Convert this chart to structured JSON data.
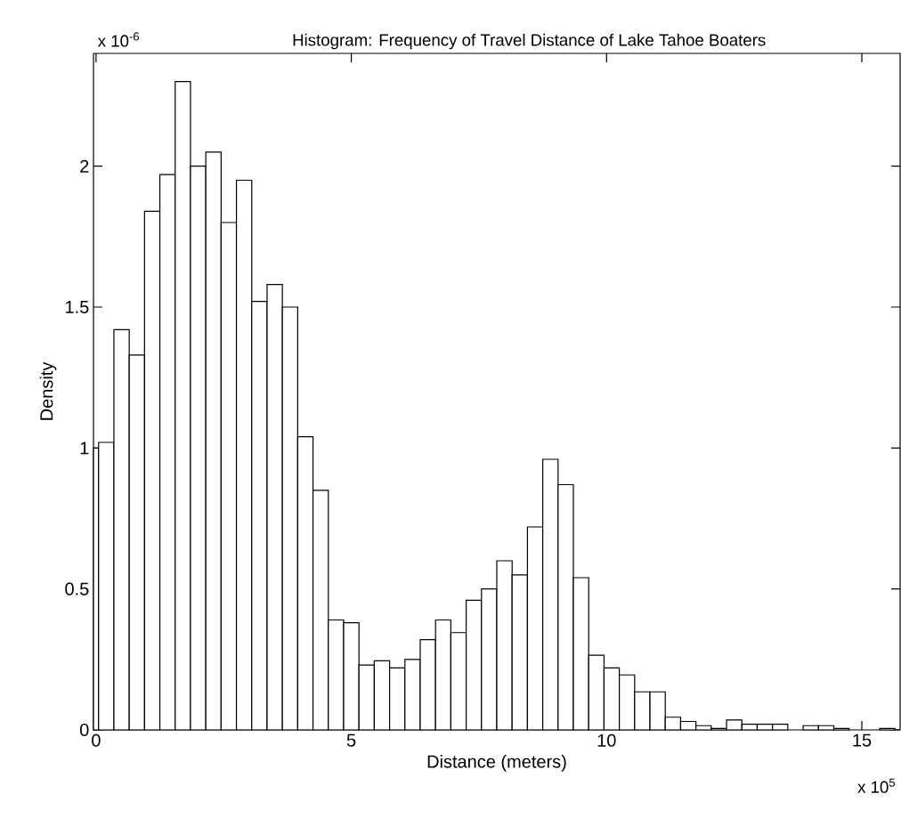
{
  "chart_data": {
    "type": "histogram",
    "title": "Histogram: Frequency of Travel Distance of Lake Tahoe Boaters",
    "xlabel": "Distance (meters)",
    "ylabel": "Density",
    "annotations": [
      "x 10$^{-6}$",
      "x 10$^{5}$"
    ],
    "bins": [
      -0.05,
      0.05,
      0.35,
      0.65,
      0.95,
      1.25,
      1.55,
      1.85,
      2.15,
      2.45,
      2.75,
      3.05,
      3.35,
      3.65,
      3.95,
      4.25,
      4.55,
      4.85,
      5.15,
      5.45,
      5.75,
      6.05,
      6.35,
      6.65,
      6.95,
      7.25,
      7.55,
      7.85,
      8.15,
      8.45,
      8.75,
      9.05,
      9.35,
      9.65,
      9.95,
      10.25,
      10.55,
      10.85,
      11.15,
      11.45,
      11.75,
      12.05,
      12.35,
      12.65,
      12.95,
      13.25,
      13.55,
      13.85,
      14.15,
      14.45,
      14.75,
      15.35,
      15.65
    ],
    "values": [
      1.0,
      1.02,
      1.42,
      1.33,
      1.84,
      1.97,
      2.3,
      2.0,
      2.05,
      1.8,
      1.95,
      1.52,
      1.58,
      1.5,
      1.04,
      0.85,
      0.39,
      0.38,
      0.23,
      0.245,
      0.22,
      0.25,
      0.32,
      0.39,
      0.345,
      0.46,
      0.5,
      0.6,
      0.55,
      0.72,
      0.96,
      0.87,
      0.54,
      0.265,
      0.22,
      0.195,
      0.135,
      0.135,
      0.045,
      0.03,
      0.015,
      0.005,
      0.035,
      0.02,
      0.02,
      0.02,
      0,
      0.015,
      0.015,
      0.005,
      0,
      0.005
    ],
    "color": "#ffffff",
    "xlim": [
      -0.05,
      15.75
    ],
    "ylim": [
      0,
      2.4
    ],
    "xticks": [
      0,
      5,
      10,
      15
    ],
    "yticks": [
      0,
      0.5,
      1,
      1.5,
      2
    ]
  }
}
